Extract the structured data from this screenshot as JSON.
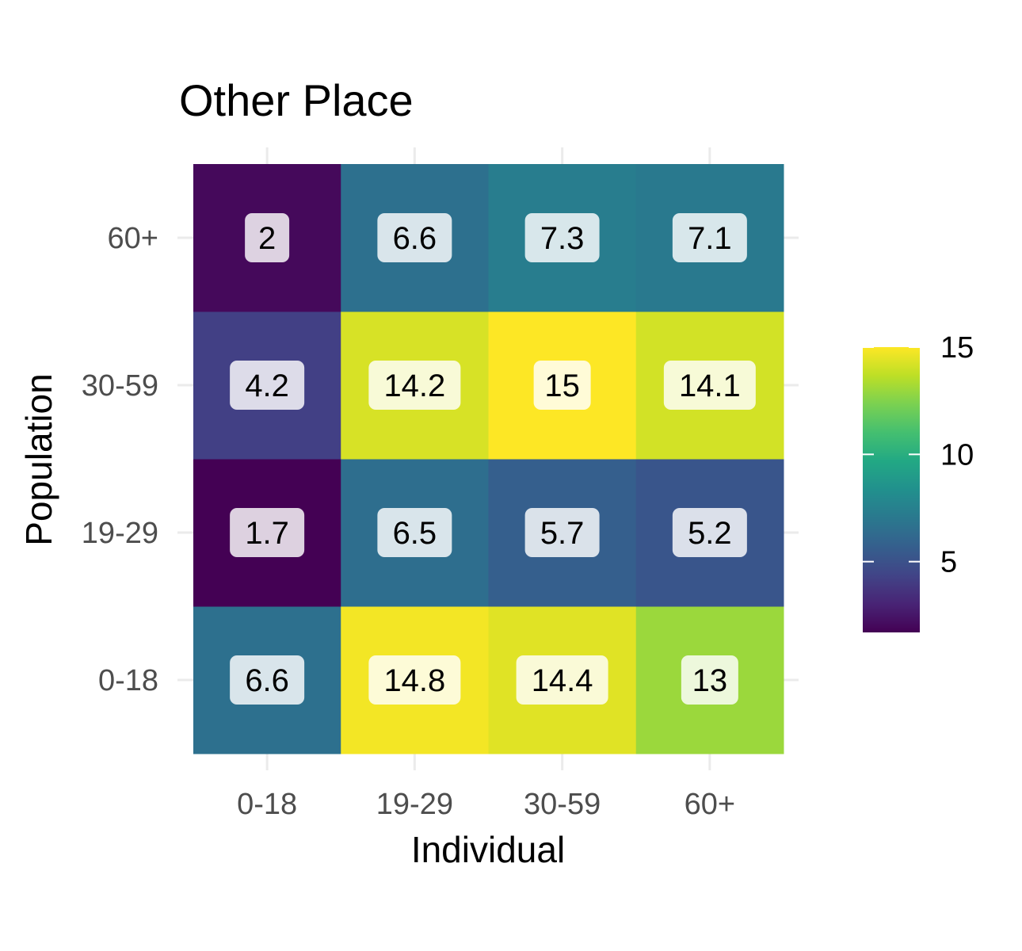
{
  "chart_data": {
    "type": "heatmap",
    "title": "Other Place",
    "xlabel": "Individual",
    "ylabel": "Population",
    "x_categories": [
      "0-18",
      "19-29",
      "30-59",
      "60+"
    ],
    "y_categories": [
      "0-18",
      "19-29",
      "30-59",
      "60+"
    ],
    "values": [
      [
        6.6,
        14.8,
        14.4,
        13
      ],
      [
        1.7,
        6.5,
        5.7,
        5.2
      ],
      [
        4.2,
        14.2,
        15,
        14.1
      ],
      [
        2,
        6.6,
        7.3,
        7.1
      ]
    ],
    "labels": [
      [
        "6.6",
        "14.8",
        "14.4",
        "13"
      ],
      [
        "1.7",
        "6.5",
        "5.7",
        "5.2"
      ],
      [
        "4.2",
        "14.2",
        "15",
        "14.1"
      ],
      [
        "2",
        "6.6",
        "7.3",
        "7.1"
      ]
    ],
    "colorscale": "viridis",
    "value_range": [
      1.7,
      15
    ],
    "legend": {
      "position": "right",
      "ticks": [
        5,
        10,
        15
      ]
    },
    "grid": true
  }
}
